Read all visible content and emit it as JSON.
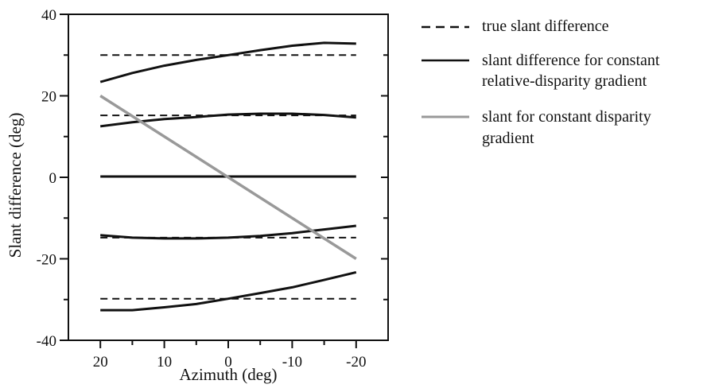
{
  "chart_data": {
    "type": "line",
    "xlabel": "Azimuth (deg)",
    "ylabel": "Slant difference (deg)",
    "xlim": [
      25,
      -25
    ],
    "ylim": [
      -40,
      40
    ],
    "x_reversed": true,
    "x_ticks": [
      20,
      10,
      0,
      -10,
      -20
    ],
    "x_tick_labels": [
      "20",
      "10",
      "0",
      "-10",
      "-20"
    ],
    "y_ticks": [
      -40,
      -20,
      0,
      20,
      40
    ],
    "y_tick_labels": [
      "-40",
      "-20",
      "0",
      "20",
      "40"
    ],
    "grid": false,
    "legend_position": "right",
    "legend": [
      {
        "label": "true slant difference",
        "style": "dashed",
        "color": "#111111"
      },
      {
        "label": [
          "slant difference for constant",
          "relative-disparity gradient"
        ],
        "style": "solid",
        "color": "#111111"
      },
      {
        "label": [
          "slant for constant disparity",
          "gradient"
        ],
        "style": "solid",
        "color": "#999999"
      }
    ],
    "series": [
      {
        "style": "dashed",
        "color": "#111111",
        "x": [
          20,
          -20
        ],
        "y": [
          30,
          30
        ]
      },
      {
        "style": "dashed",
        "color": "#111111",
        "x": [
          20,
          -20
        ],
        "y": [
          15.2,
          15.2
        ]
      },
      {
        "style": "dashed",
        "color": "#111111",
        "x": [
          20,
          -20
        ],
        "y": [
          -14.8,
          -14.8
        ]
      },
      {
        "style": "dashed",
        "color": "#111111",
        "x": [
          20,
          -20
        ],
        "y": [
          -29.8,
          -29.8
        ]
      },
      {
        "style": "solid",
        "color": "#111111",
        "x": [
          20,
          15,
          10,
          5,
          0,
          -5,
          -10,
          -15,
          -20
        ],
        "y": [
          23.4,
          25.6,
          27.4,
          28.8,
          30,
          31.2,
          32.3,
          33,
          32.8
        ]
      },
      {
        "style": "solid",
        "color": "#111111",
        "x": [
          20,
          15,
          10,
          5,
          0,
          -5,
          -10,
          -15,
          -20
        ],
        "y": [
          12.5,
          13.5,
          14.3,
          14.8,
          15.4,
          15.6,
          15.6,
          15.3,
          14.7
        ]
      },
      {
        "style": "solid",
        "color": "#111111",
        "x": [
          20,
          -20
        ],
        "y": [
          0.2,
          0.2
        ]
      },
      {
        "style": "solid",
        "color": "#111111",
        "x": [
          20,
          15,
          10,
          5,
          0,
          -5,
          -10,
          -15,
          -20
        ],
        "y": [
          -14.2,
          -14.8,
          -15,
          -15,
          -14.8,
          -14.4,
          -13.7,
          -12.8,
          -11.9
        ]
      },
      {
        "style": "solid",
        "color": "#111111",
        "x": [
          20,
          15,
          10,
          5,
          0,
          -5,
          -10,
          -15,
          -20
        ],
        "y": [
          -32.6,
          -32.6,
          -31.9,
          -31.1,
          -29.8,
          -28.4,
          -27,
          -25.2,
          -23.3
        ]
      },
      {
        "style": "solid",
        "color": "#999999",
        "x": [
          20,
          -20
        ],
        "y": [
          20,
          -20
        ]
      }
    ]
  }
}
